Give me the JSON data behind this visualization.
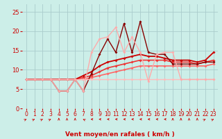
{
  "bg_color": "#cceee8",
  "grid_color": "#aacccc",
  "xlabel": "Vent moyen/en rafales ( km/h )",
  "xlabel_color": "#cc0000",
  "ylabel_ticks": [
    0,
    5,
    10,
    15,
    20,
    25
  ],
  "xlim": [
    -0.5,
    23.5
  ],
  "ylim": [
    0,
    27
  ],
  "x": [
    0,
    1,
    2,
    3,
    4,
    5,
    6,
    7,
    8,
    9,
    10,
    11,
    12,
    13,
    14,
    15,
    16,
    17,
    18,
    19,
    20,
    21,
    22,
    23
  ],
  "series": [
    {
      "y": [
        7.5,
        7.5,
        7.5,
        7.5,
        7.5,
        7.5,
        7.5,
        7.5,
        8.0,
        8.5,
        9.0,
        9.5,
        10.0,
        10.5,
        11.0,
        11.0,
        11.0,
        11.0,
        11.0,
        11.0,
        11.0,
        11.0,
        11.0,
        11.5
      ],
      "color": "#ff6666",
      "lw": 1.2,
      "marker": "D",
      "ms": 2.0
    },
    {
      "y": [
        7.5,
        7.5,
        7.5,
        7.5,
        7.5,
        7.5,
        7.5,
        8.0,
        8.5,
        9.5,
        10.5,
        11.0,
        11.5,
        12.0,
        12.5,
        12.5,
        12.5,
        12.5,
        12.0,
        12.0,
        12.0,
        11.5,
        12.0,
        12.5
      ],
      "color": "#ee3333",
      "lw": 1.2,
      "marker": "D",
      "ms": 2.0
    },
    {
      "y": [
        7.5,
        7.5,
        7.5,
        7.5,
        7.5,
        7.5,
        7.5,
        8.5,
        9.5,
        11.0,
        12.0,
        12.5,
        13.0,
        13.5,
        14.0,
        13.5,
        13.5,
        13.0,
        12.5,
        12.5,
        12.5,
        12.0,
        12.5,
        14.5
      ],
      "color": "#cc0000",
      "lw": 1.3,
      "marker": "D",
      "ms": 2.0
    },
    {
      "y": [
        7.5,
        7.5,
        7.5,
        7.5,
        4.5,
        4.5,
        7.5,
        4.5,
        9.0,
        14.0,
        18.0,
        14.5,
        22.0,
        14.5,
        22.5,
        14.5,
        14.0,
        14.0,
        11.5,
        11.5,
        11.5,
        11.5,
        12.0,
        12.0
      ],
      "color": "#880000",
      "lw": 1.0,
      "marker": "D",
      "ms": 2.0
    },
    {
      "y": [
        7.5,
        7.5,
        7.5,
        7.5,
        7.5,
        7.5,
        7.5,
        7.5,
        7.5,
        7.5,
        7.5,
        7.5,
        7.5,
        7.5,
        7.5,
        7.5,
        7.5,
        7.5,
        7.5,
        7.5,
        7.5,
        7.5,
        7.5,
        7.5
      ],
      "color": "#ffbbbb",
      "lw": 1.0,
      "marker": "D",
      "ms": 2.0
    },
    {
      "y": [
        7.5,
        7.5,
        7.5,
        7.5,
        4.5,
        4.5,
        7.5,
        4.5,
        14.5,
        18.0,
        18.5,
        21.0,
        14.5,
        18.5,
        14.5,
        7.0,
        14.0,
        14.5,
        14.5,
        7.5,
        7.5,
        7.5,
        7.5,
        7.5
      ],
      "color": "#ffaaaa",
      "lw": 1.0,
      "marker": "D",
      "ms": 2.0
    }
  ],
  "arrows": {
    "y_data": -2.8,
    "directions": [
      45,
      45,
      45,
      45,
      0,
      0,
      0,
      -45,
      -90,
      -90,
      -90,
      -90,
      -90,
      -90,
      -90,
      -90,
      -90,
      -90,
      0,
      0,
      0,
      0,
      45,
      45
    ],
    "color": "#cc0000",
    "size": 4.5
  },
  "tick_color": "#cc0000",
  "tick_fontsize": 6,
  "xtick_fontsize": 5.5
}
